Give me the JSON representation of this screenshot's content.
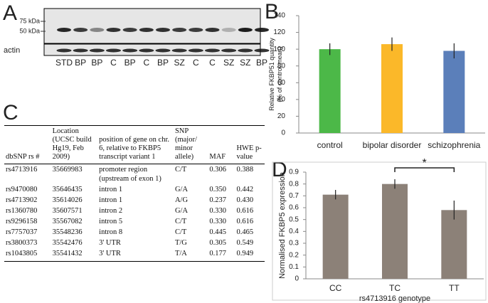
{
  "panel_labels": [
    "A",
    "B",
    "C",
    "D"
  ],
  "blot": {
    "markers": [
      "75 kDa",
      "50 kDa"
    ],
    "row_label": "actin",
    "lanes": [
      "STD",
      "BP",
      "BP",
      "C",
      "BP",
      "C",
      "BP",
      "SZ",
      "C",
      "C",
      "SZ",
      "SZ",
      "BP"
    ]
  },
  "table": {
    "headers": [
      "dbSNP rs #",
      "Location (UCSC build Hg19, Feb 2009)",
      "position of gene on chr. 6, relative to FKBP5 transcript variant 1",
      "SNP (major/ minor allele)",
      "MAF",
      "HWE p-value"
    ],
    "rows": [
      [
        "rs4713916",
        "35669983",
        "promoter region (upstream of exon 1)",
        "C/T",
        "0.306",
        "0.388"
      ],
      [
        "rs9470080",
        "35646435",
        "intron 1",
        "G/A",
        "0.350",
        "0.442"
      ],
      [
        "rs4713902",
        "35614026",
        "intron 1",
        "A/G",
        "0.237",
        "0.430"
      ],
      [
        "rs1360780",
        "35607571",
        "intron 2",
        "G/A",
        "0.330",
        "0.616"
      ],
      [
        "rs9296158",
        "35567082",
        "intron 5",
        "C/T",
        "0.330",
        "0.616"
      ],
      [
        "rs7757037",
        "35548236",
        "intron 8",
        "C/T",
        "0.445",
        "0.465"
      ],
      [
        "rs3800373",
        "35542476",
        "3' UTR",
        "T/G",
        "0.305",
        "0.549"
      ],
      [
        "rs1043805",
        "35541432",
        "3' UTR",
        "T/A",
        "0.177",
        "0.949"
      ]
    ]
  },
  "chart_data": [
    {
      "type": "bar",
      "ylabel": [
        "Relative FKBP51 quantity",
        "(% of control mean)"
      ],
      "categories": [
        "control",
        "bipolar disorder",
        "schizophrenia"
      ],
      "values": [
        100,
        106,
        98
      ],
      "errors": [
        7,
        8,
        9
      ],
      "colors": [
        "#4cb848",
        "#fbb829",
        "#5b7fba"
      ],
      "ylim": [
        0,
        140
      ],
      "yticks": [
        0,
        20,
        40,
        60,
        80,
        100,
        120,
        140
      ]
    },
    {
      "type": "bar",
      "ylabel": [
        "Normalised FKBP5 expression"
      ],
      "xlabel": "rs4713916 genotype",
      "categories": [
        "CC",
        "TC",
        "TT"
      ],
      "values": [
        0.71,
        0.8,
        0.58
      ],
      "errors": [
        0.04,
        0.04,
        0.08
      ],
      "colors": [
        "#8c8178",
        "#8c8178",
        "#8c8178"
      ],
      "ylim": [
        0,
        0.9
      ],
      "yticks": [
        0,
        0.1,
        0.2,
        0.3,
        0.4,
        0.5,
        0.6,
        0.7,
        0.8,
        0.9
      ],
      "annotation": "*"
    }
  ]
}
